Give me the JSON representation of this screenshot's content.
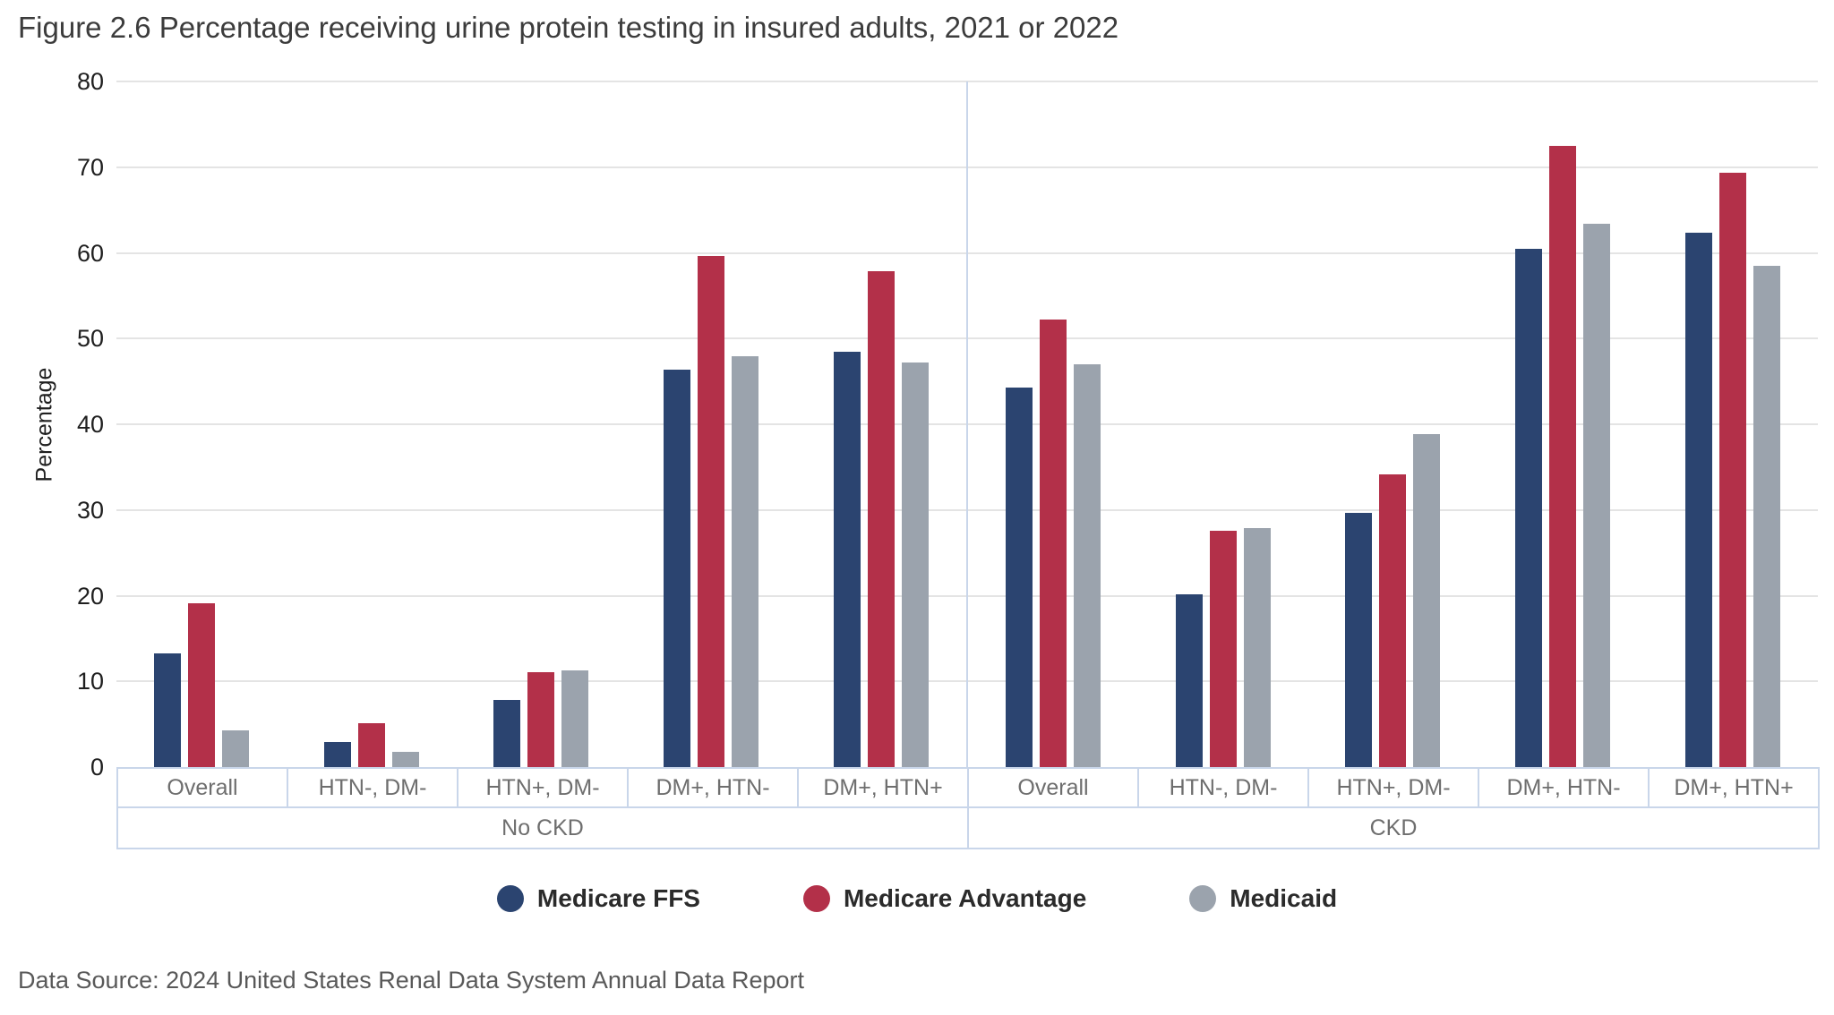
{
  "title": "Figure 2.6 Percentage receiving urine protein testing in insured adults, 2021 or 2022",
  "source": "Data Source: 2024 United States Renal Data System Annual Data Report",
  "colors": {
    "medicare_ffs": "#2b4470",
    "medicare_advantage": "#b33049",
    "medicaid": "#9ba3ad",
    "gridline": "#e4e4e4",
    "band_border": "#c9d6ea",
    "band_text": "#6e6e6e"
  },
  "chart_data": {
    "type": "bar",
    "title": "Figure 2.6 Percentage receiving urine protein testing in insured adults, 2021 or 2022",
    "xlabel": "",
    "ylabel": "Percentage",
    "ylim": [
      0,
      80
    ],
    "ytick_step": 10,
    "grid": true,
    "legend_position": "bottom",
    "panels": [
      {
        "label": "No CKD",
        "categories": [
          "Overall",
          "HTN-, DM-",
          "HTN+, DM-",
          "DM+, HTN-",
          "DM+, HTN+"
        ],
        "series": [
          {
            "name": "Medicare FFS",
            "color": "#2b4470",
            "values": [
              13.3,
              2.9,
              7.8,
              46.4,
              48.5
            ]
          },
          {
            "name": "Medicare Advantage",
            "color": "#b33049",
            "values": [
              19.1,
              5.1,
              11.1,
              59.6,
              57.9
            ]
          },
          {
            "name": "Medicaid",
            "color": "#9ba3ad",
            "values": [
              4.3,
              1.8,
              11.3,
              47.9,
              47.2
            ]
          }
        ]
      },
      {
        "label": "CKD",
        "categories": [
          "Overall",
          "HTN-, DM-",
          "HTN+, DM-",
          "DM+, HTN-",
          "DM+, HTN+"
        ],
        "series": [
          {
            "name": "Medicare FFS",
            "color": "#2b4470",
            "values": [
              44.3,
              20.2,
              29.7,
              60.5,
              62.4
            ]
          },
          {
            "name": "Medicare Advantage",
            "color": "#b33049",
            "values": [
              52.2,
              27.6,
              34.2,
              72.5,
              69.4
            ]
          },
          {
            "name": "Medicaid",
            "color": "#9ba3ad",
            "values": [
              47.0,
              27.9,
              38.9,
              63.4,
              58.5
            ]
          }
        ]
      }
    ]
  }
}
